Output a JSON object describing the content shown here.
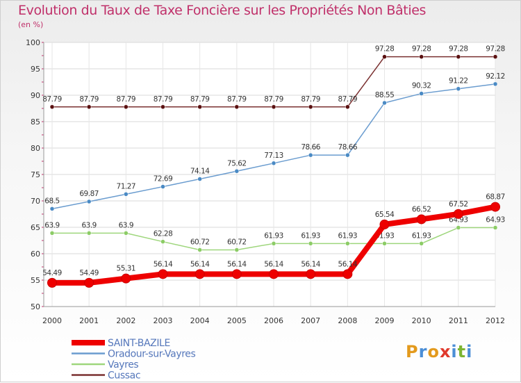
{
  "chart_data": {
    "type": "line",
    "title": "Evolution du Taux de Taxe Foncière sur les Propriétés Non Bâties",
    "subtitle": "(en %)",
    "categories": [
      "2000",
      "2001",
      "2002",
      "2003",
      "2004",
      "2005",
      "2006",
      "2007",
      "2008",
      "2009",
      "2010",
      "2011",
      "2012"
    ],
    "ylim": [
      50,
      100
    ],
    "yticks": [
      "50",
      "55",
      "60",
      "65",
      "70",
      "75",
      "80",
      "85",
      "90",
      "95",
      "100"
    ],
    "grid": true,
    "legend_position": "bottom-left",
    "series": [
      {
        "name": "Cussac",
        "color": "#7a3030",
        "marker": "#5a1010",
        "values": [
          87.79,
          87.79,
          87.79,
          87.79,
          87.79,
          87.79,
          87.79,
          87.79,
          87.79,
          97.28,
          97.28,
          97.28,
          97.28
        ],
        "labels": [
          "87.79",
          "87.79",
          "87.79",
          "87.79",
          "87.79",
          "87.79",
          "87.79",
          "87.79",
          "87.79",
          "97.28",
          "97.28",
          "97.28",
          "97.28"
        ]
      },
      {
        "name": "Oradour-sur-Vayres",
        "color": "#6a9ccf",
        "marker": "#4a8ac4",
        "values": [
          68.5,
          69.87,
          71.27,
          72.69,
          74.14,
          75.62,
          77.13,
          78.66,
          78.66,
          88.55,
          90.32,
          91.22,
          92.12
        ],
        "labels": [
          "68.5",
          "69.87",
          "71.27",
          "72.69",
          "74.14",
          "75.62",
          "77.13",
          "78.66",
          "78.66",
          "88.55",
          "90.32",
          "91.22",
          "92.12"
        ]
      },
      {
        "name": "Vayres",
        "color": "#9ed67c",
        "marker": "#8ccc66",
        "values": [
          63.9,
          63.9,
          63.9,
          62.28,
          60.72,
          60.72,
          61.93,
          61.93,
          61.93,
          61.93,
          61.93,
          64.93,
          64.93
        ],
        "labels": [
          "63.9",
          "63.9",
          "63.9",
          "62.28",
          "60.72",
          "60.72",
          "61.93",
          "61.93",
          "61.93",
          "61.93",
          "61.93",
          "64.93",
          "64.93"
        ]
      },
      {
        "name": "SAINT-BAZILE",
        "color": "#ee0000",
        "marker": "#ee0000",
        "values": [
          54.49,
          54.49,
          55.31,
          56.14,
          56.14,
          56.14,
          56.14,
          56.14,
          56.14,
          65.54,
          66.52,
          67.52,
          68.87
        ],
        "labels": [
          "54.49",
          "54.49",
          "55.31",
          "56.14",
          "56.14",
          "56.14",
          "56.14",
          "56.14",
          "56.14",
          "65.54",
          "66.52",
          "67.52",
          "68.87"
        ]
      }
    ],
    "legend": [
      {
        "name": "SAINT-BAZILE",
        "color": "#ee0000"
      },
      {
        "name": "Oradour-sur-Vayres",
        "color": "#6a9ccf"
      },
      {
        "name": "Vayres",
        "color": "#9ed67c"
      },
      {
        "name": "Cussac",
        "color": "#7a3030"
      }
    ]
  },
  "logo": {
    "text": "Proxiti"
  }
}
